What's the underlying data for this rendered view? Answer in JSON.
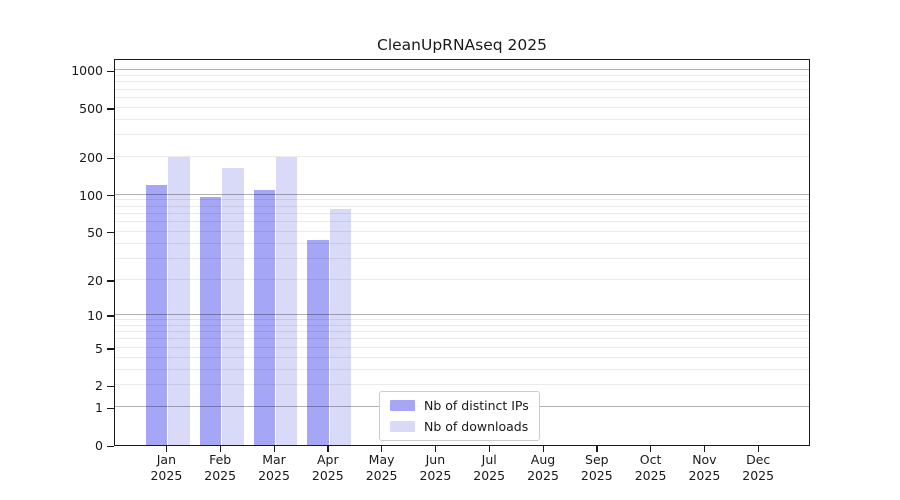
{
  "title": "CleanUpRNAseq 2025",
  "chart_data": {
    "type": "bar",
    "title": "CleanUpRNAseq 2025",
    "categories": [
      "Jan",
      "Feb",
      "Mar",
      "Apr",
      "May",
      "Jun",
      "Jul",
      "Aug",
      "Sep",
      "Oct",
      "Nov",
      "Dec"
    ],
    "year": "2025",
    "series": [
      {
        "name": "Nb of distinct IPs",
        "color": "#a6a6f7",
        "values": [
          120,
          95,
          110,
          43,
          0,
          0,
          0,
          0,
          0,
          0,
          0,
          0
        ]
      },
      {
        "name": "Nb of downloads",
        "color": "#d9d9f8",
        "values": [
          200,
          165,
          200,
          76,
          0,
          0,
          0,
          0,
          0,
          0,
          0,
          0
        ]
      }
    ],
    "yscale": "log1p",
    "yticks": [
      0,
      1,
      2,
      5,
      10,
      20,
      50,
      100,
      200,
      500,
      1000
    ],
    "grid_major": [
      1,
      10,
      100,
      1000
    ],
    "ylim": [
      0,
      1253
    ],
    "xlabel": "",
    "ylabel": "",
    "grid": "horizontal",
    "legend_position": "lower-center"
  },
  "colors": {
    "distinct_ips": "#a6a6f7",
    "downloads": "#d9d9f8",
    "spine": "#1a1a1a",
    "grid_minor": "rgba(0,0,0,0.08)",
    "grid_major": "rgba(0,0,0,0.3)"
  }
}
